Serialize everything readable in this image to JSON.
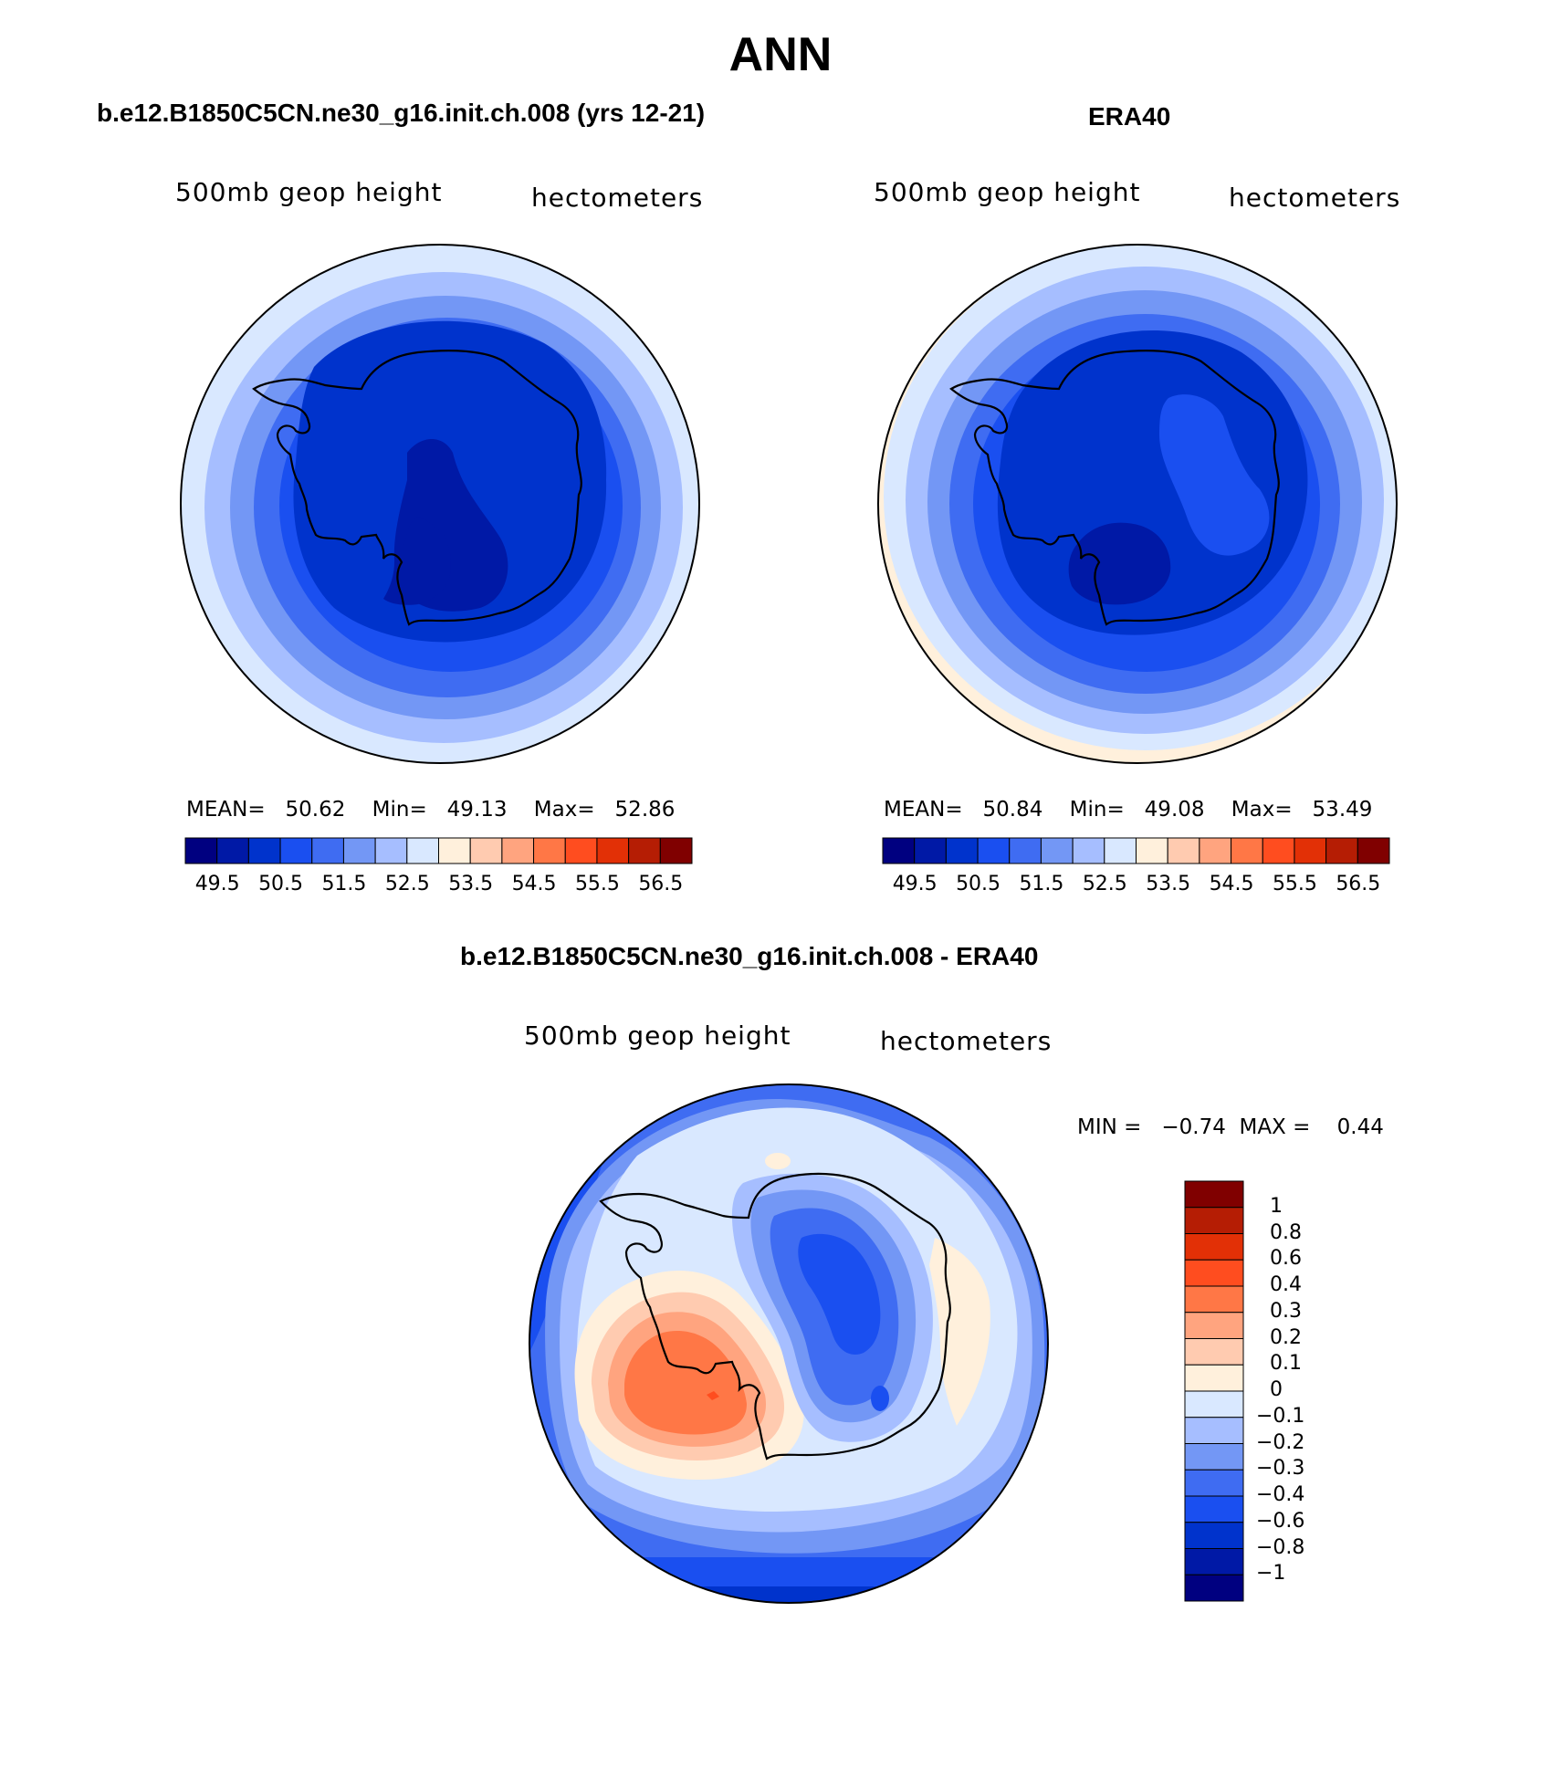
{
  "figure": {
    "title": "ANN"
  },
  "panels": {
    "model": {
      "title": "b.e12.B1850C5CN.ne30_g16.init.ch.008 (yrs 12-21)",
      "variable": "500mb geop height",
      "units": "hectometers",
      "stats": {
        "mean_label": "MEAN=",
        "mean": "50.62",
        "min_label": "Min=",
        "min": "49.13",
        "max_label": "Max=",
        "max": "52.86"
      }
    },
    "obs": {
      "title": "ERA40",
      "variable": "500mb geop height",
      "units": "hectometers",
      "stats": {
        "mean_label": "MEAN=",
        "mean": "50.84",
        "min_label": "Min=",
        "min": "49.08",
        "max_label": "Max=",
        "max": "53.49"
      }
    },
    "diff": {
      "title": "b.e12.B1850C5CN.ne30_g16.init.ch.008 - ERA40",
      "variable": "500mb geop height",
      "units": "hectometers",
      "stats": {
        "min_label": "MIN =",
        "min": "−0.74",
        "max_label": "MAX =",
        "max": "0.44"
      }
    }
  },
  "colorbars": {
    "abs": {
      "colors": [
        "#000080",
        "#0019a6",
        "#0033cc",
        "#1a4ff0",
        "#3f6cf2",
        "#7397f5",
        "#a6beff",
        "#d9e8ff",
        "#fff0dc",
        "#ffcbb0",
        "#ffa47f",
        "#ff7746",
        "#ff4d1f",
        "#e23006",
        "#b51d04",
        "#800000"
      ],
      "labels": [
        "49.5",
        "50.5",
        "51.5",
        "52.5",
        "53.5",
        "54.5",
        "55.5",
        "56.5"
      ]
    },
    "diff": {
      "colors": [
        "#800000",
        "#b51d04",
        "#e23006",
        "#ff4d1f",
        "#ff7746",
        "#ffa47f",
        "#ffcbb0",
        "#fff0dc",
        "#d9e8ff",
        "#a6beff",
        "#7397f5",
        "#3f6cf2",
        "#1a4ff0",
        "#0033cc",
        "#0019a6",
        "#000080"
      ],
      "labels": [
        "1",
        "0.8",
        "0.6",
        "0.4",
        "0.3",
        "0.2",
        "0.1",
        "0",
        "−0.1",
        "−0.2",
        "−0.3",
        "−0.4",
        "−0.6",
        "−0.8",
        "−1"
      ]
    }
  }
}
